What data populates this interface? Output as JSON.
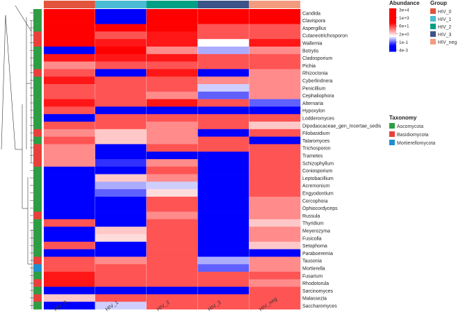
{
  "chart_data": {
    "type": "heatmap",
    "columns": [
      "HIV_0",
      "HIV_1",
      "HIV_2",
      "HIV_3",
      "HIV_neg"
    ],
    "rows": [
      {
        "name": "Candida",
        "taxonomy": "Ascomycota",
        "values": [
          3000,
          0.004,
          3000,
          30000,
          1000
        ]
      },
      {
        "name": "Clavispora",
        "taxonomy": "Ascomycota",
        "values": [
          1000,
          0.004,
          3000,
          1000,
          300
        ]
      },
      {
        "name": "Aspergillus",
        "taxonomy": "Ascomycota",
        "values": [
          300,
          300,
          300,
          30,
          30
        ]
      },
      {
        "name": "Cutaneotrichosporon",
        "taxonomy": "Basidiomycota",
        "values": [
          300,
          30,
          100,
          30,
          30
        ]
      },
      {
        "name": "Wallemia",
        "taxonomy": "Basidiomycota",
        "values": [
          300,
          100,
          100,
          1,
          100
        ]
      },
      {
        "name": "Botrytis",
        "taxonomy": "Ascomycota",
        "values": [
          0.004,
          300,
          10,
          0.3,
          10
        ]
      },
      {
        "name": "Cladosporium",
        "taxonomy": "Ascomycota",
        "values": [
          100,
          100,
          100,
          30,
          30
        ]
      },
      {
        "name": "Pichia",
        "taxonomy": "Ascomycota",
        "values": [
          10,
          30,
          30,
          30,
          30
        ]
      },
      {
        "name": "Rhizoctonia",
        "taxonomy": "Basidiomycota",
        "values": [
          30,
          0.004,
          100,
          0.004,
          10
        ]
      },
      {
        "name": "Cyberlindnera",
        "taxonomy": "Ascomycota",
        "values": [
          100,
          30,
          30,
          10,
          10
        ]
      },
      {
        "name": "Penicillium",
        "taxonomy": "Ascomycota",
        "values": [
          30,
          30,
          30,
          0.5,
          10
        ]
      },
      {
        "name": "Cephaliophora",
        "taxonomy": "Ascomycota",
        "values": [
          30,
          30,
          10,
          0.1,
          10
        ]
      },
      {
        "name": "Alternaria",
        "taxonomy": "Ascomycota",
        "values": [
          100,
          30,
          100,
          30,
          0.1
        ]
      },
      {
        "name": "Hypoxylon",
        "taxonomy": "Ascomycota",
        "values": [
          30,
          0.004,
          0.004,
          0.004,
          0.004
        ]
      },
      {
        "name": "Lodderomyces",
        "taxonomy": "Ascomycota",
        "values": [
          0.004,
          30,
          30,
          30,
          30
        ]
      },
      {
        "name": "Dipodascaceae_gen_Incertae_sedis",
        "taxonomy": "Ascomycota",
        "values": [
          30,
          30,
          10,
          30,
          3
        ]
      },
      {
        "name": "Filobasidium",
        "taxonomy": "Basidiomycota",
        "values": [
          10,
          3,
          10,
          0.004,
          30
        ]
      },
      {
        "name": "Talaromyces",
        "taxonomy": "Ascomycota",
        "values": [
          30,
          3,
          10,
          30,
          0.004
        ]
      },
      {
        "name": "Trichosporon",
        "taxonomy": "Basidiomycota",
        "values": [
          10,
          0.004,
          30,
          30,
          30
        ]
      },
      {
        "name": "Trametes",
        "taxonomy": "Basidiomycota",
        "values": [
          10,
          0.004,
          0.004,
          0.004,
          30
        ]
      },
      {
        "name": "Schizophyllum",
        "taxonomy": "Basidiomycota",
        "values": [
          10,
          0.05,
          10,
          0.004,
          30
        ]
      },
      {
        "name": "Coniosporium",
        "taxonomy": "Ascomycota",
        "values": [
          0.004,
          0.004,
          30,
          0.004,
          30
        ]
      },
      {
        "name": "Leptobacillium",
        "taxonomy": "Ascomycota",
        "values": [
          0.004,
          3,
          10,
          0.004,
          30
        ]
      },
      {
        "name": "Acremonium",
        "taxonomy": "Ascomycota",
        "values": [
          0.004,
          0.3,
          0.5,
          0.004,
          30
        ]
      },
      {
        "name": "Engyodontium",
        "taxonomy": "Ascomycota",
        "values": [
          0.004,
          0.1,
          2,
          0.004,
          30
        ]
      },
      {
        "name": "Cercophora",
        "taxonomy": "Ascomycota",
        "values": [
          0.004,
          0.004,
          30,
          0.004,
          10
        ]
      },
      {
        "name": "Ophiocordyceps",
        "taxonomy": "Ascomycota",
        "values": [
          0.004,
          0.004,
          30,
          0.004,
          10
        ]
      },
      {
        "name": "Russula",
        "taxonomy": "Basidiomycota",
        "values": [
          0.004,
          0.004,
          10,
          0.004,
          10
        ]
      },
      {
        "name": "Thyridium",
        "taxonomy": "Ascomycota",
        "values": [
          30,
          0.004,
          30,
          0.004,
          3
        ]
      },
      {
        "name": "Meyerozyma",
        "taxonomy": "Ascomycota",
        "values": [
          0.004,
          3,
          30,
          0.004,
          10
        ]
      },
      {
        "name": "Fusicolla",
        "taxonomy": "Ascomycota",
        "values": [
          0.004,
          2,
          30,
          0.004,
          10
        ]
      },
      {
        "name": "Setophoma",
        "taxonomy": "Ascomycota",
        "values": [
          30,
          0.004,
          30,
          0.004,
          3
        ]
      },
      {
        "name": "Paraboeremia",
        "taxonomy": "Ascomycota",
        "values": [
          0.004,
          0.004,
          30,
          0.004,
          0.004
        ]
      },
      {
        "name": "Tausonia",
        "taxonomy": "Basidiomycota",
        "values": [
          30,
          10,
          30,
          0.3,
          10
        ]
      },
      {
        "name": "Mortierella",
        "taxonomy": "Mortierellomycota",
        "values": [
          30,
          30,
          30,
          0.1,
          10
        ]
      },
      {
        "name": "Fusarium",
        "taxonomy": "Ascomycota",
        "values": [
          100,
          30,
          30,
          30,
          30
        ]
      },
      {
        "name": "Rhodotorula",
        "taxonomy": "Basidiomycota",
        "values": [
          100,
          30,
          30,
          30,
          10
        ]
      },
      {
        "name": "Sarcinomyces",
        "taxonomy": "Ascomycota",
        "values": [
          0.004,
          0.004,
          0.004,
          0.004,
          30
        ]
      },
      {
        "name": "Malassezia",
        "taxonomy": "Basidiomycota",
        "values": [
          3,
          30,
          30,
          30,
          30
        ]
      },
      {
        "name": "Saccharomyces",
        "taxonomy": "Ascomycota",
        "values": [
          0.004,
          0.5,
          30,
          30,
          30
        ]
      }
    ],
    "abundance_legend": {
      "title": "Abundance",
      "scale": "log",
      "ticks": [
        "3e+4",
        "1e+3",
        "6e+1",
        "2e+0",
        "1e-1",
        "4e-3"
      ]
    },
    "group_legend": {
      "title": "Group",
      "items": [
        {
          "label": "HIV_0",
          "color": "#e2553c"
        },
        {
          "label": "HIV_1",
          "color": "#4bbbd3"
        },
        {
          "label": "HIV_2",
          "color": "#00a085"
        },
        {
          "label": "HIV_3",
          "color": "#3c5488"
        },
        {
          "label": "HIV_neg",
          "color": "#f39b7f"
        }
      ]
    },
    "taxonomy_legend": {
      "title": "Taxonomy",
      "items": [
        {
          "label": "Ascomycota",
          "color": "#2e9e44"
        },
        {
          "label": "Basidiomycota",
          "color": "#e8413c"
        },
        {
          "label": "Mortierellomycota",
          "color": "#1f8fce"
        }
      ]
    },
    "colors": {
      "high": "#ff0000",
      "mid": "#ffffff",
      "low": "#0000ff"
    }
  }
}
